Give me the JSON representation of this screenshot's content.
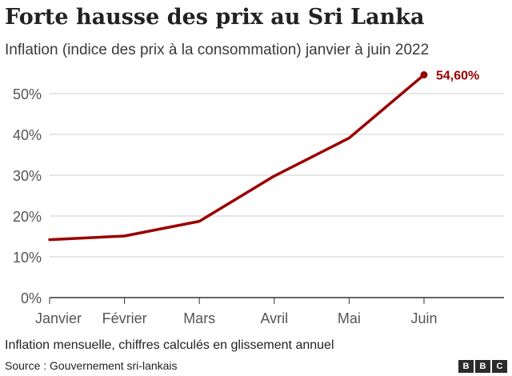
{
  "header": {
    "title": "Forte hausse des prix au Sri Lanka",
    "subtitle": "Inflation (indice des prix à la consommation) janvier à juin 2022"
  },
  "footer": {
    "note": "Inflation mensuelle, chiffres calculés en glissement annuel",
    "source": "Source : Gouvernement sri-lankais",
    "logo_letters": [
      "B",
      "B",
      "C"
    ]
  },
  "chart_data": {
    "type": "line",
    "title": "Forte hausse des prix au Sri Lanka",
    "subtitle": "Inflation (indice des prix à la consommation) janvier à juin 2022",
    "xlabel": "",
    "ylabel": "",
    "categories": [
      "Janvier",
      "Février",
      "Mars",
      "Avril",
      "Mai",
      "Juin"
    ],
    "series": [
      {
        "values": [
          14.2,
          15.1,
          18.7,
          29.8,
          39.1,
          54.6
        ],
        "color": "#990000"
      }
    ],
    "ylim": [
      0,
      55
    ],
    "yticks": [
      0,
      10,
      20,
      30,
      40,
      50
    ],
    "ytick_labels": [
      "0%",
      "10%",
      "20%",
      "30%",
      "40%",
      "50%"
    ],
    "end_label": "54,60%",
    "grid": true,
    "gridline_color": "#cccccc",
    "axis_color": "#333333",
    "legend": "none"
  }
}
